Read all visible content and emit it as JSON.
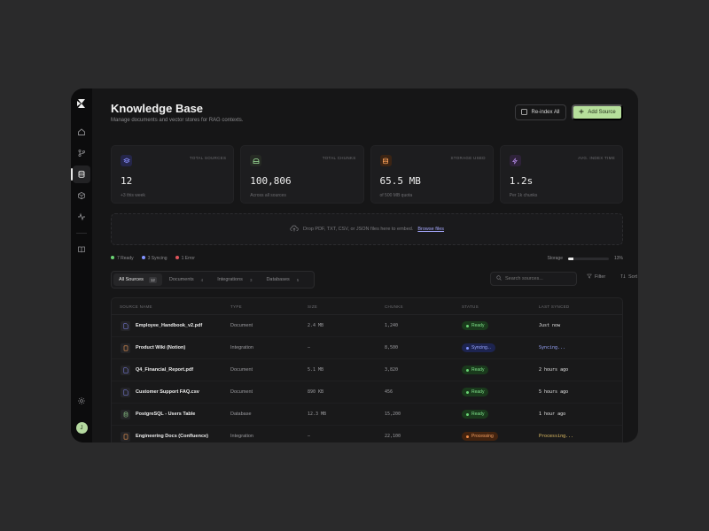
{
  "header": {
    "title": "Knowledge Base",
    "subtitle": "Manage documents and vector stores for RAG contexts.",
    "reindex_label": "Re-index All",
    "add_label": "Add Source"
  },
  "stats": [
    {
      "label": "TOTAL SOURCES",
      "value": "12",
      "sub": "+3 this week",
      "icon": "layers-icon",
      "color": "#8a8fff"
    },
    {
      "label": "TOTAL CHUNKS",
      "value": "100,806",
      "sub": "Across all sources",
      "icon": "box-icon",
      "color": "#9fe29a"
    },
    {
      "label": "STORAGE USED",
      "value": "65.5 MB",
      "sub": "of 500 MB quota",
      "icon": "database-icon",
      "color": "#f19a55"
    },
    {
      "label": "AVG. INDEX TIME",
      "value": "1.2s",
      "sub": "Per 1k chunks",
      "icon": "bolt-icon",
      "color": "#b48ae6"
    }
  ],
  "dropzone": {
    "text": "Drop PDF, TXT, CSV, or JSON files here to embed.",
    "link": "Browse files"
  },
  "status_summary": {
    "ready": "7 Ready",
    "syncing": "3 Syncing",
    "error": "1 Error",
    "storage_label": "Storage",
    "storage_percent": "13%",
    "storage_fraction": 0.13
  },
  "tabs": [
    {
      "label": "All Sources",
      "count": "12"
    },
    {
      "label": "Documents",
      "count": "4"
    },
    {
      "label": "Integrations",
      "count": "3"
    },
    {
      "label": "Databases",
      "count": "5"
    }
  ],
  "search": {
    "placeholder": "Search sources..."
  },
  "toolbar": {
    "filter": "Filter",
    "sort": "Sort"
  },
  "table": {
    "columns": [
      "SOURCE NAME",
      "TYPE",
      "SIZE",
      "CHUNKS",
      "STATUS",
      "LAST SYNCED"
    ],
    "rows": [
      {
        "name": "Employee_Handbook_v2.pdf",
        "type": "Document",
        "size": "2.4 MB",
        "chunks": "1,240",
        "status": "Ready",
        "synced": "Just now",
        "icon": "file-icon",
        "icon_color": "#8a8fff"
      },
      {
        "name": "Product Wiki (Notion)",
        "type": "Integration",
        "size": "—",
        "chunks": "8,500",
        "status": "Syncing...",
        "synced": "Syncing...",
        "icon": "notion-icon",
        "icon_color": "#f19a55"
      },
      {
        "name": "Q4_Financial_Report.pdf",
        "type": "Document",
        "size": "5.1 MB",
        "chunks": "3,820",
        "status": "Ready",
        "synced": "2 hours ago",
        "icon": "file-icon",
        "icon_color": "#8a8fff"
      },
      {
        "name": "Customer Support FAQ.csv",
        "type": "Document",
        "size": "890 KB",
        "chunks": "456",
        "status": "Ready",
        "synced": "5 hours ago",
        "icon": "file-icon",
        "icon_color": "#8a8fff"
      },
      {
        "name": "PostgreSQL - Users Table",
        "type": "Database",
        "size": "12.3 MB",
        "chunks": "15,200",
        "status": "Ready",
        "synced": "1 hour ago",
        "icon": "database-icon",
        "icon_color": "#9fe29a"
      },
      {
        "name": "Engineering Docs (Confluence)",
        "type": "Integration",
        "size": "—",
        "chunks": "22,100",
        "status": "Processing",
        "synced": "Processing...",
        "icon": "confluence-icon",
        "icon_color": "#f19a55"
      }
    ]
  }
}
